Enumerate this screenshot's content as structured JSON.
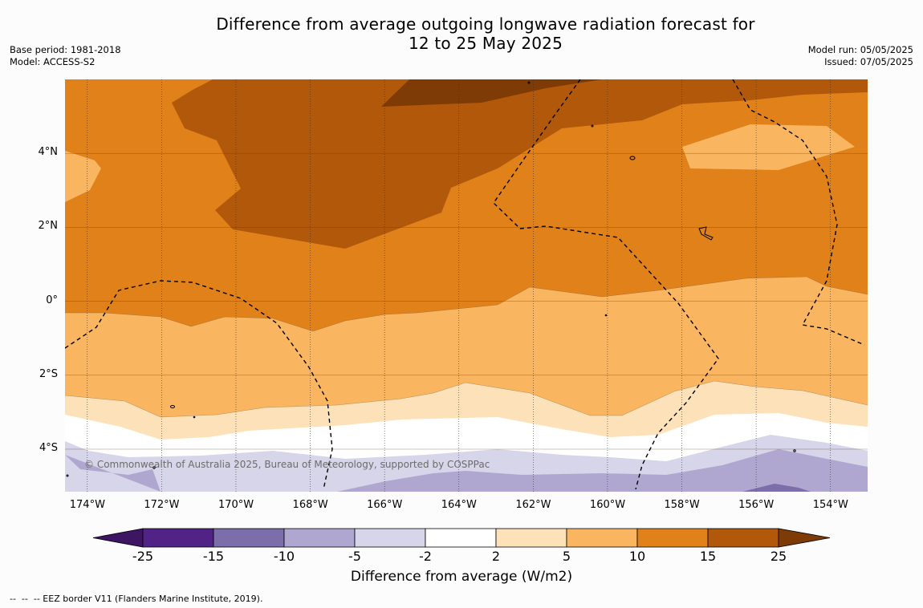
{
  "title_line1": "Difference from average outgoing longwave radiation forecast for",
  "title_line2": "12 to 25 May 2025",
  "meta_left": [
    "Base period: 1981-2018",
    "Model: ACCESS-S2"
  ],
  "meta_right": [
    "Model run: 05/05/2025",
    "Issued: 07/05/2025"
  ],
  "copyright": "© Commonwealth of Australia 2025, Bureau of Meteorology, supported by COSPPac",
  "lon_labels": [
    "174°W",
    "172°W",
    "170°W",
    "168°W",
    "166°W",
    "164°W",
    "162°W",
    "160°W",
    "158°W",
    "156°W",
    "154°W"
  ],
  "lat_labels": [
    "4°N",
    "2°N",
    "0°",
    "2°S",
    "4°S"
  ],
  "colorbar": {
    "title": "Difference from average (W/m2)",
    "ticks": [
      "-25",
      "-15",
      "-10",
      "-5",
      "-2",
      "2",
      "5",
      "10",
      "15",
      "25"
    ],
    "colors": [
      "#3d1563",
      "#522386",
      "#7c6dab",
      "#b0a7d0",
      "#d7d5e9",
      "#ffffff",
      "#fde1b8",
      "#f9b560",
      "#e0811a",
      "#b2580a",
      "#7f3b06"
    ]
  },
  "footnote": "--  --  -- EEZ border V11 (Flanders Marine Institute, 2019).",
  "map": {
    "extent_lon": [
      -174.6,
      -153.0
    ],
    "extent_lat": [
      -5.15,
      6.0
    ],
    "background_color": "#e0811a",
    "band_colors": {
      "dark": "#b2580a",
      "darkest": "#7f3b06",
      "light": "#f9b560",
      "lighter": "#fde1b8",
      "white": "#ffffff",
      "pale_purple": "#d7d5e9",
      "purple": "#b0a7d0",
      "deep_purple": "#7c6dab"
    }
  }
}
